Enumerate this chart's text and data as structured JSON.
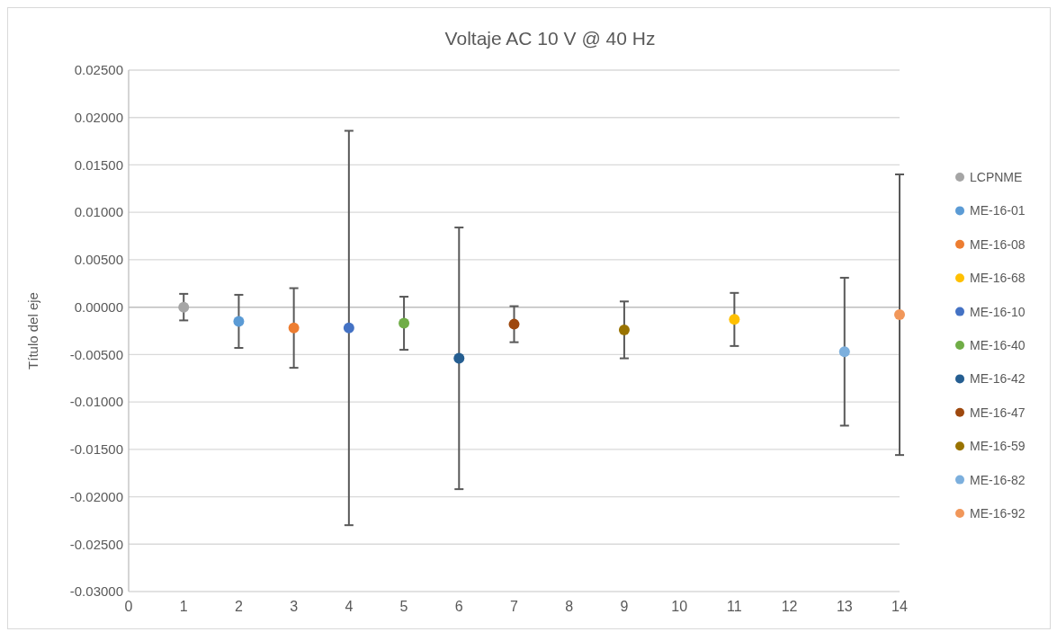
{
  "chart_data": {
    "type": "scatter",
    "title": "Voltaje AC 10 V @ 40 Hz",
    "ylabel": "Título del eje",
    "xlim": [
      0,
      14
    ],
    "xticks": [
      0,
      1,
      2,
      3,
      4,
      5,
      6,
      7,
      8,
      9,
      10,
      11,
      12,
      13,
      14
    ],
    "ylim": [
      -0.03,
      0.025
    ],
    "yticks": [
      {
        "value": -0.03,
        "label": "-0.03000"
      },
      {
        "value": -0.025,
        "label": "-0.02500"
      },
      {
        "value": -0.02,
        "label": "-0.02000"
      },
      {
        "value": -0.015,
        "label": "-0.01500"
      },
      {
        "value": -0.01,
        "label": "-0.01000"
      },
      {
        "value": -0.005,
        "label": "-0.00500"
      },
      {
        "value": 0,
        "label": "0.00000"
      },
      {
        "value": 0.005,
        "label": "0.00500"
      },
      {
        "value": 0.01,
        "label": "0.01000"
      },
      {
        "value": 0.015,
        "label": "0.01500"
      },
      {
        "value": 0.02,
        "label": "0.02000"
      },
      {
        "value": 0.025,
        "label": "0.02500"
      }
    ],
    "grid": "y",
    "legend": "right",
    "marker": "circle",
    "series": [
      {
        "name": "LCPNME",
        "color": "#a5a5a5",
        "x": [
          1
        ],
        "values": [
          0
        ],
        "errors": [
          0.0014
        ]
      },
      {
        "name": "ME-16-01",
        "color": "#5b9bd5",
        "x": [
          2
        ],
        "values": [
          -0.0015
        ],
        "errors": [
          0.0028
        ]
      },
      {
        "name": "ME-16-08",
        "color": "#ed7d31",
        "x": [
          3
        ],
        "values": [
          -0.0022
        ],
        "errors": [
          0.0042
        ]
      },
      {
        "name": "ME-16-68",
        "color": "#ffc000",
        "x": [
          11
        ],
        "values": [
          -0.0013
        ],
        "errors": [
          0.0028
        ]
      },
      {
        "name": "ME-16-10",
        "color": "#4472c4",
        "x": [
          4
        ],
        "values": [
          -0.0022
        ],
        "errors": [
          0.0208
        ]
      },
      {
        "name": "ME-16-40",
        "color": "#70ad47",
        "x": [
          5
        ],
        "values": [
          -0.0017
        ],
        "errors": [
          0.0028
        ]
      },
      {
        "name": "ME-16-42",
        "color": "#255e91",
        "x": [
          6
        ],
        "values": [
          -0.0054
        ],
        "errors": [
          0.0138
        ]
      },
      {
        "name": "ME-16-47",
        "color": "#9e480e",
        "x": [
          7
        ],
        "values": [
          -0.0018
        ],
        "errors": [
          0.0019
        ]
      },
      {
        "name": "ME-16-59",
        "color": "#997300",
        "x": [
          9
        ],
        "values": [
          -0.0024
        ],
        "errors": [
          0.003
        ]
      },
      {
        "name": "ME-16-82",
        "color": "#7cafdd",
        "x": [
          13
        ],
        "values": [
          -0.0047
        ],
        "errors": [
          0.0078
        ]
      },
      {
        "name": "ME-16-92",
        "color": "#f1975a",
        "x": [
          14
        ],
        "values": [
          -0.0008
        ],
        "errors": [
          0.0148
        ]
      }
    ]
  }
}
